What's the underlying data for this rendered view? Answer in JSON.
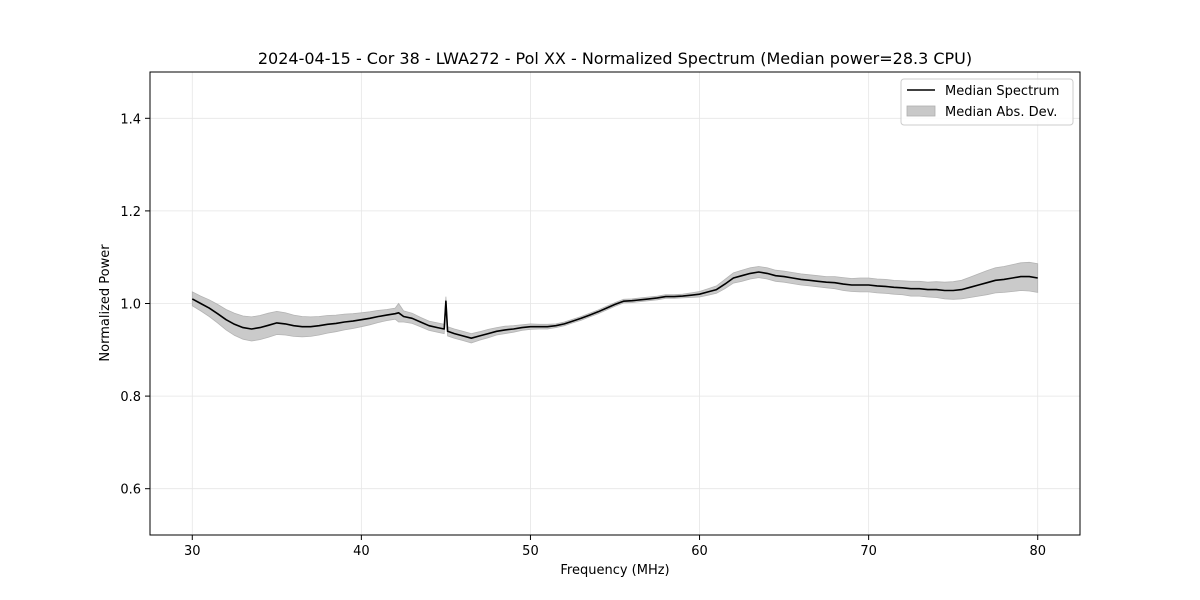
{
  "chart_data": {
    "type": "line",
    "title": "2024-04-15 - Cor 38 - LWA272 - Pol XX - Normalized Spectrum (Median power=28.3 CPU)",
    "xlabel": "Frequency (MHz)",
    "ylabel": "Normalized Power",
    "xlim": [
      27.5,
      82.5
    ],
    "ylim": [
      0.5,
      1.5
    ],
    "xticks": [
      30,
      40,
      50,
      60,
      70,
      80
    ],
    "yticks": [
      0.6,
      0.8,
      1.0,
      1.2,
      1.4
    ],
    "xtick_labels": [
      "30",
      "40",
      "50",
      "60",
      "70",
      "80"
    ],
    "ytick_labels": [
      "0.6",
      "0.8",
      "1.0",
      "1.2",
      "1.4"
    ],
    "grid": true,
    "legend_position": "top-right",
    "legend": [
      {
        "label": "Median Spectrum",
        "kind": "line",
        "color": "#000000"
      },
      {
        "label": "Median Abs. Dev.",
        "kind": "band",
        "color": "#c8c8c8"
      }
    ],
    "series": [
      {
        "name": "Median Spectrum",
        "x": [
          30.0,
          30.5,
          31.0,
          31.5,
          32.0,
          32.5,
          33.0,
          33.5,
          34.0,
          34.5,
          35.0,
          35.5,
          36.0,
          36.5,
          37.0,
          37.5,
          38.0,
          38.5,
          39.0,
          39.5,
          40.0,
          40.5,
          41.0,
          41.5,
          42.0,
          42.2,
          42.5,
          43.0,
          43.5,
          44.0,
          44.5,
          44.9,
          45.0,
          45.1,
          45.5,
          46.0,
          46.5,
          47.0,
          47.5,
          48.0,
          48.5,
          49.0,
          49.5,
          50.0,
          50.5,
          51.0,
          51.5,
          52.0,
          52.5,
          53.0,
          53.5,
          54.0,
          54.5,
          55.0,
          55.5,
          56.0,
          56.5,
          57.0,
          57.5,
          58.0,
          58.5,
          59.0,
          59.5,
          60.0,
          60.5,
          61.0,
          61.5,
          62.0,
          62.5,
          63.0,
          63.5,
          64.0,
          64.5,
          65.0,
          65.5,
          66.0,
          66.5,
          67.0,
          67.5,
          68.0,
          68.5,
          69.0,
          69.5,
          70.0,
          70.5,
          71.0,
          71.5,
          72.0,
          72.5,
          73.0,
          73.5,
          74.0,
          74.5,
          75.0,
          75.5,
          76.0,
          76.5,
          77.0,
          77.5,
          78.0,
          78.5,
          79.0,
          79.5,
          80.0
        ],
        "values": [
          1.01,
          1.0,
          0.99,
          0.978,
          0.965,
          0.955,
          0.948,
          0.945,
          0.948,
          0.953,
          0.958,
          0.956,
          0.952,
          0.95,
          0.95,
          0.952,
          0.955,
          0.957,
          0.96,
          0.962,
          0.965,
          0.968,
          0.972,
          0.975,
          0.978,
          0.98,
          0.972,
          0.968,
          0.96,
          0.952,
          0.948,
          0.945,
          1.005,
          0.94,
          0.935,
          0.93,
          0.925,
          0.93,
          0.935,
          0.94,
          0.943,
          0.945,
          0.948,
          0.95,
          0.95,
          0.95,
          0.952,
          0.956,
          0.962,
          0.968,
          0.975,
          0.982,
          0.99,
          0.998,
          1.005,
          1.006,
          1.008,
          1.01,
          1.012,
          1.015,
          1.015,
          1.016,
          1.018,
          1.02,
          1.025,
          1.03,
          1.042,
          1.055,
          1.06,
          1.065,
          1.068,
          1.065,
          1.06,
          1.058,
          1.055,
          1.052,
          1.05,
          1.048,
          1.046,
          1.045,
          1.042,
          1.04,
          1.04,
          1.04,
          1.038,
          1.037,
          1.035,
          1.034,
          1.032,
          1.032,
          1.03,
          1.03,
          1.028,
          1.028,
          1.03,
          1.035,
          1.04,
          1.045,
          1.05,
          1.052,
          1.055,
          1.058,
          1.058,
          1.055
        ]
      },
      {
        "name": "Median Abs. Dev.",
        "x": [
          30.0,
          30.5,
          31.0,
          31.5,
          32.0,
          32.5,
          33.0,
          33.5,
          34.0,
          34.5,
          35.0,
          35.5,
          36.0,
          36.5,
          37.0,
          37.5,
          38.0,
          38.5,
          39.0,
          39.5,
          40.0,
          40.5,
          41.0,
          41.5,
          42.0,
          42.2,
          42.5,
          43.0,
          43.5,
          44.0,
          44.5,
          44.9,
          45.0,
          45.1,
          45.5,
          46.0,
          46.5,
          47.0,
          47.5,
          48.0,
          48.5,
          49.0,
          49.5,
          50.0,
          50.5,
          51.0,
          51.5,
          52.0,
          52.5,
          53.0,
          53.5,
          54.0,
          54.5,
          55.0,
          55.5,
          56.0,
          56.5,
          57.0,
          57.5,
          58.0,
          58.5,
          59.0,
          59.5,
          60.0,
          60.5,
          61.0,
          61.5,
          62.0,
          62.5,
          63.0,
          63.5,
          64.0,
          64.5,
          65.0,
          65.5,
          66.0,
          66.5,
          67.0,
          67.5,
          68.0,
          68.5,
          69.0,
          69.5,
          70.0,
          70.5,
          71.0,
          71.5,
          72.0,
          72.5,
          73.0,
          73.5,
          74.0,
          74.5,
          75.0,
          75.5,
          76.0,
          76.5,
          77.0,
          77.5,
          78.0,
          78.5,
          79.0,
          79.5,
          80.0
        ],
        "deviation": [
          0.015,
          0.016,
          0.018,
          0.02,
          0.022,
          0.024,
          0.025,
          0.026,
          0.026,
          0.026,
          0.025,
          0.024,
          0.023,
          0.022,
          0.021,
          0.02,
          0.019,
          0.018,
          0.017,
          0.016,
          0.015,
          0.014,
          0.013,
          0.012,
          0.012,
          0.02,
          0.012,
          0.011,
          0.01,
          0.01,
          0.01,
          0.01,
          0.01,
          0.01,
          0.01,
          0.01,
          0.01,
          0.009,
          0.009,
          0.008,
          0.008,
          0.007,
          0.006,
          0.006,
          0.005,
          0.005,
          0.004,
          0.004,
          0.004,
          0.004,
          0.004,
          0.004,
          0.004,
          0.004,
          0.004,
          0.004,
          0.004,
          0.004,
          0.004,
          0.004,
          0.004,
          0.004,
          0.005,
          0.006,
          0.007,
          0.008,
          0.01,
          0.011,
          0.012,
          0.012,
          0.012,
          0.012,
          0.012,
          0.012,
          0.012,
          0.012,
          0.012,
          0.012,
          0.012,
          0.013,
          0.014,
          0.014,
          0.015,
          0.015,
          0.015,
          0.015,
          0.015,
          0.015,
          0.016,
          0.016,
          0.016,
          0.017,
          0.018,
          0.019,
          0.02,
          0.022,
          0.024,
          0.026,
          0.027,
          0.028,
          0.029,
          0.03,
          0.031,
          0.031
        ]
      }
    ]
  }
}
